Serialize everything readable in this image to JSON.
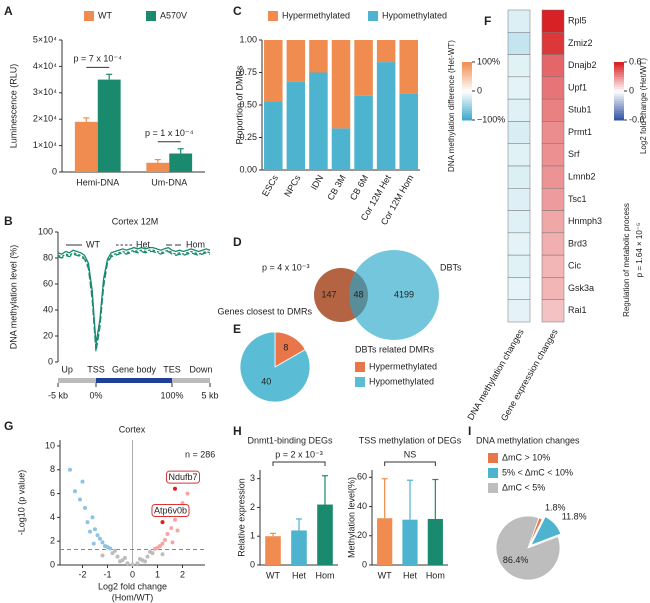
{
  "chart_data": [
    {
      "panel": "A",
      "type": "bar",
      "ylabel": "Luminescence (RLU)",
      "categories": [
        "Hemi-DNA",
        "Um-DNA"
      ],
      "series": [
        {
          "name": "WT",
          "color": "#f08c4f",
          "values": [
            19000,
            3500
          ],
          "errors": [
            1500,
            1200
          ]
        },
        {
          "name": "A570V",
          "color": "#1a8a6e",
          "values": [
            35000,
            7000
          ],
          "errors": [
            2000,
            1800
          ]
        }
      ],
      "annotations": [
        "p = 7 x 10⁻⁴",
        "p = 1 x 10⁻⁴"
      ],
      "ylim": [
        0,
        50000
      ],
      "yticks": [
        0,
        {
          "value": 10000,
          "label": "1×10⁴"
        },
        {
          "value": 20000,
          "label": "2×10⁴"
        },
        {
          "value": 30000,
          "label": "3×10⁴"
        },
        {
          "value": 40000,
          "label": "4×10⁴"
        },
        {
          "value": 50000,
          "label": "5×10⁴"
        }
      ]
    },
    {
      "panel": "C",
      "type": "stacked_bar",
      "ylabel": "Proportion of DMRs",
      "categories": [
        "ESCs",
        "NPCs",
        "IDN",
        "CB 3M",
        "CB 6M",
        "Cor 12M Het",
        "Cor 12M Hom"
      ],
      "series": [
        {
          "name": "Hypermethylated",
          "color": "#f08c4f",
          "values": [
            0.47,
            0.32,
            0.25,
            0.68,
            0.43,
            0.17,
            0.41
          ]
        },
        {
          "name": "Hypomethylated",
          "color": "#4db3cf",
          "values": [
            0.53,
            0.68,
            0.75,
            0.32,
            0.57,
            0.83,
            0.59
          ]
        }
      ],
      "ylim": [
        0,
        1
      ],
      "yticks": [
        {
          "value": 0,
          "label": "0.00"
        },
        0.25,
        {
          "value": 0.5,
          "label": "0.50"
        },
        0.75,
        {
          "value": 1,
          "label": "1.00"
        }
      ]
    },
    {
      "panel": "F",
      "type": "heatmap",
      "rows": [
        "Rpl5",
        "Zmiz2",
        "Dnajb2",
        "Upf1",
        "Stub1",
        "Prmt1",
        "Srf",
        "Lmnb2",
        "Tsc1",
        "Hnmph3",
        "Brd3",
        "Cic",
        "Gsk3a",
        "Rai1"
      ],
      "columns": [
        {
          "name": "DNA methylation changes",
          "values": [
            -18,
            -30,
            -15,
            -14,
            -16,
            -20,
            -15,
            -18,
            -17,
            -16,
            -14,
            -15,
            -12,
            -13
          ],
          "colorbar": {
            "label": "DNA methylation difference (Het-WT)",
            "lim": [
              -100,
              100
            ],
            "colors": [
              "#3aa6c9",
              "#ffffff",
              "#f08c4f"
            ],
            "ticks": [
              {
                "value": 100,
                "label": "100%"
              },
              0,
              {
                "value": -100,
                "label": "−100%"
              }
            ]
          }
        },
        {
          "name": "Gene expression changes",
          "values": [
            0.58,
            0.52,
            0.4,
            0.36,
            0.33,
            0.3,
            0.29,
            0.28,
            0.26,
            0.23,
            0.21,
            0.19,
            0.19,
            0.16
          ],
          "colorbar": {
            "label": "Log2 fold change (Het/WT)",
            "lim": [
              -0.6,
              0.6
            ],
            "colors": [
              "#2b4fa0",
              "#ffffff",
              "#d7191c"
            ],
            "ticks": [
              0.6,
              0,
              -0.6
            ]
          }
        }
      ],
      "side_label": "Regulation of metabolic process",
      "p_label": "p = 1.64 × 10⁻⁵"
    },
    {
      "panel": "B",
      "type": "line",
      "title": "Cortex 12M",
      "ylabel": "DNA methylation level (%)",
      "x": [
        0,
        1,
        2,
        3,
        4,
        5,
        6,
        7,
        8,
        9,
        10,
        11,
        12,
        13,
        14,
        15,
        16,
        17,
        18,
        19,
        20,
        21,
        22,
        23,
        24,
        25,
        26,
        27,
        28,
        29,
        30,
        31,
        32,
        33,
        34,
        35,
        36,
        37,
        38,
        39,
        40
      ],
      "series": [
        {
          "name": "WT",
          "color": "#1a8a6e",
          "line_style": "solid",
          "values": [
            84,
            83,
            85,
            84,
            86,
            85,
            84,
            82,
            76,
            55,
            14,
            32,
            64,
            79,
            84,
            85,
            86,
            87,
            86,
            87,
            88,
            87,
            88,
            87,
            88,
            88,
            87,
            86,
            87,
            88,
            86,
            85,
            86,
            85,
            86,
            87,
            86,
            85,
            86,
            87,
            86
          ]
        },
        {
          "name": "Het",
          "color": "#1a8a6e",
          "line_style": "dashed",
          "values": [
            82,
            81,
            83,
            82,
            84,
            83,
            82,
            80,
            73,
            50,
            10,
            28,
            60,
            77,
            82,
            83,
            84,
            85,
            84,
            85,
            86,
            85,
            86,
            85,
            86,
            86,
            85,
            84,
            85,
            86,
            84,
            83,
            84,
            83,
            84,
            85,
            84,
            83,
            84,
            85,
            84
          ]
        },
        {
          "name": "Hom",
          "color": "#1a8a6e",
          "line_style": "long-dashed",
          "values": [
            81,
            80,
            82,
            81,
            83,
            82,
            81,
            79,
            72,
            48,
            8,
            26,
            58,
            76,
            81,
            82,
            83,
            84,
            83,
            84,
            85,
            84,
            85,
            84,
            85,
            85,
            84,
            83,
            84,
            85,
            83,
            82,
            83,
            82,
            83,
            84,
            83,
            82,
            83,
            84,
            83
          ]
        }
      ],
      "regions": [
        "Up",
        "TSS",
        "Gene body",
        "TES",
        "Down"
      ],
      "xlim": [
        0,
        40
      ],
      "xticks": [
        {
          "value": 0,
          "label": "-5 kb"
        },
        {
          "value": 10,
          "label": "0%"
        },
        {
          "value": 30,
          "label": "100%"
        },
        {
          "value": 40,
          "label": "5 kb"
        }
      ],
      "ylim": [
        0,
        100
      ],
      "yticks": [
        0,
        20,
        40,
        60,
        80,
        100
      ]
    },
    {
      "panel": "D",
      "type": "venn",
      "sets": [
        "Genes closest to DMRs",
        "DBTs"
      ],
      "colors": [
        "#e8764a",
        "#5bbcd6"
      ],
      "values": [
        147,
        48,
        4199
      ],
      "annotation": "p = 4 x 10⁻³"
    },
    {
      "panel": "E",
      "type": "pie",
      "title": "DBTs related DMRs",
      "categories": [
        "Hypermethylated",
        "Hypomethylated"
      ],
      "values": [
        8,
        40
      ],
      "colors": [
        "#e8764a",
        "#5bbcd6"
      ]
    },
    {
      "panel": "G",
      "type": "scatter",
      "title": "Cortex",
      "annotation": "n = 286",
      "xlabel": [
        "Log2 fold change",
        "(Hom/WT)"
      ],
      "ylabel": "-Log10 (p value)",
      "series": [
        {
          "color": "#8ec3e3",
          "x": [
            -2.5,
            -2.3,
            -2.1,
            -2.0,
            -1.9,
            -1.8,
            -1.7,
            -1.6,
            -1.55,
            -1.5,
            -1.4,
            -1.3,
            -1.2,
            -1.1,
            -1.0,
            -0.9
          ],
          "values": [
            8.0,
            6.2,
            5.5,
            7.0,
            4.8,
            3.6,
            2.8,
            4.0,
            1.8,
            3.0,
            2.5,
            2.2,
            1.9,
            1.6,
            1.5,
            1.4
          ]
        },
        {
          "color": "#bdbdbd",
          "x": [
            -1.2,
            -0.8,
            -0.7,
            -0.6,
            -0.5,
            -0.4,
            -0.3,
            -0.2,
            0,
            0.2,
            0.3,
            0.4,
            0.5,
            0.6,
            0.7,
            0.8,
            1.2
          ],
          "values": [
            0.8,
            1.0,
            1.2,
            0.7,
            0.3,
            0.4,
            0.6,
            0.15,
            0.02,
            0.15,
            0.5,
            0.4,
            0.3,
            0.7,
            1.1,
            1.0,
            0.9
          ]
        },
        {
          "color": "#f4a6a6",
          "x": [
            0.9,
            1.0,
            1.1,
            1.2,
            1.3,
            1.4,
            1.55,
            1.6,
            1.7,
            1.8,
            1.9,
            2.0,
            2.2,
            2.4
          ],
          "values": [
            1.35,
            1.45,
            1.6,
            1.8,
            2.1,
            2.6,
            3.1,
            1.9,
            3.8,
            2.9,
            4.4,
            5.2,
            6.0,
            7.5
          ]
        },
        {
          "color": "#e41a1c",
          "x": [
            1.7,
            1.2
          ],
          "values": [
            6.4,
            3.6
          ],
          "labels": [
            "Ndufb7",
            "Atp6v0b"
          ]
        }
      ],
      "threshold": 1.3,
      "xlim": [
        -2.9,
        2.9
      ],
      "xticks": [
        -2,
        -1,
        0,
        1,
        2
      ],
      "ylim": [
        0,
        10.5
      ],
      "yticks": [
        0,
        2,
        4,
        6,
        8,
        10
      ]
    },
    {
      "panel": "H",
      "type": "bar",
      "title": "Dnmt1-binding DEGs",
      "ylabel": "Relative expression",
      "categories": [
        "WT",
        "Het",
        "Hom"
      ],
      "values": [
        1.0,
        1.2,
        2.1
      ],
      "errors": [
        0.1,
        0.4,
        1.0
      ],
      "colors": [
        "#f08c4f",
        "#4db3cf",
        "#1a8a6e"
      ],
      "annotation": "p = 2 x 10⁻³",
      "ylim": [
        0,
        3.3
      ],
      "yticks": [
        0,
        1,
        2,
        3
      ]
    },
    {
      "type": "bar",
      "title": "TSS methylation of DEGs",
      "ylabel": "Methylation level(%)",
      "categories": [
        "WT",
        "Het",
        "Hom"
      ],
      "values": [
        32,
        31,
        31.5
      ],
      "errors": [
        27,
        27,
        27
      ],
      "colors": [
        "#f08c4f",
        "#4db3cf",
        "#1a8a6e"
      ],
      "annotation": "NS",
      "ylim": [
        0,
        65
      ],
      "yticks": [
        0,
        20,
        40,
        60
      ]
    },
    {
      "panel": "I",
      "type": "pie",
      "title": "DNA methylation changes",
      "categories": [
        "ΔmC > 10%",
        "5% < ΔmC < 10%",
        "ΔmC  < 5%"
      ],
      "values": [
        1.8,
        11.8,
        86.4
      ],
      "value_labels": [
        "1.8%",
        "11.8%",
        "86.4%"
      ],
      "colors": [
        "#e8764a",
        "#4db3cf",
        "#bdbdbd"
      ]
    }
  ]
}
